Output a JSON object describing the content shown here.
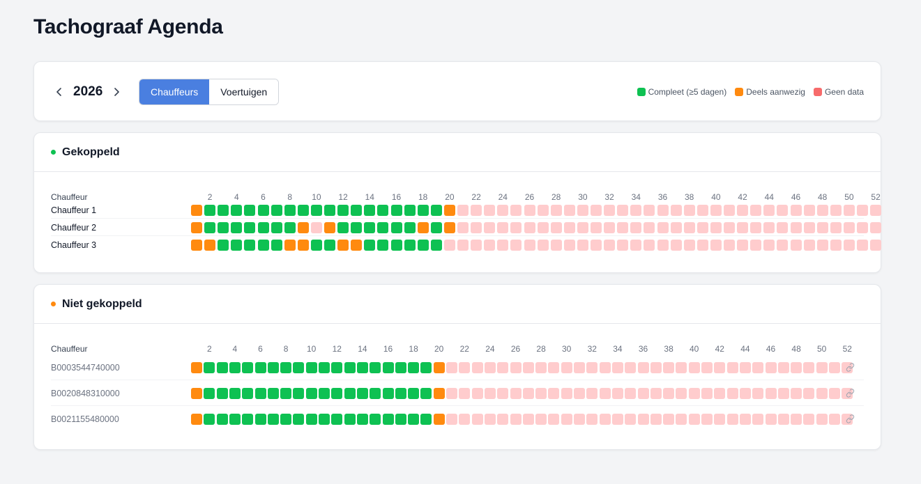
{
  "page": {
    "title": "Tachograaf Agenda"
  },
  "toolbar": {
    "year": "2026",
    "tabs": [
      {
        "label": "Chauffeurs",
        "active": true
      },
      {
        "label": "Voertuigen",
        "active": false
      }
    ],
    "legend": [
      {
        "label": "Compleet (≥5 dagen)",
        "status": "complete"
      },
      {
        "label": "Deels aanwezig",
        "status": "partial"
      },
      {
        "label": "Geen data",
        "status": "none"
      }
    ]
  },
  "colors": {
    "complete": "#0ec152",
    "partial": "#ff8a0f",
    "none": "#ffcccd",
    "legend_none": "#f76b6b",
    "accent": "#4a7fe0",
    "dot_linked": "#0ec152",
    "dot_unlinked": "#ff8a0f"
  },
  "weeks": 52,
  "week_labels": [
    "2",
    "4",
    "6",
    "8",
    "10",
    "12",
    "14",
    "16",
    "18",
    "20",
    "22",
    "24",
    "26",
    "28",
    "30",
    "32",
    "34",
    "36",
    "38",
    "40",
    "42",
    "44",
    "46",
    "48",
    "50",
    "52"
  ],
  "sections": [
    {
      "title": "Gekoppeld",
      "dot": "dot_linked",
      "column_label": "Chauffeur",
      "rows": [
        {
          "label": "Chauffeur 1",
          "weeks": "PCCCCCCCCCCCCCCCCCCP"
        },
        {
          "label": "Chauffeur 2",
          "weeks": "PCCCCCCCPNPCCCCCCPCP"
        },
        {
          "label": "Chauffeur 3",
          "weeks": "PPCCCCCPPCCPPCCCCCCN"
        }
      ]
    },
    {
      "title": "Niet gekoppeld",
      "dot": "dot_unlinked",
      "column_label": "Chauffeur",
      "rows": [
        {
          "label": "B0003544740000",
          "weeks": "PCCCCCCCCCCCCCCCCCCP",
          "link_icon": "link-icon"
        },
        {
          "label": "B0020848310000",
          "weeks": "PCCCCCCCCCCCCCCCCCCP",
          "link_icon": "link-icon"
        },
        {
          "label": "B0021155480000",
          "weeks": "PCCCCCCCCCCCCCCCCCCP",
          "link_icon": "link-icon"
        }
      ]
    }
  ]
}
